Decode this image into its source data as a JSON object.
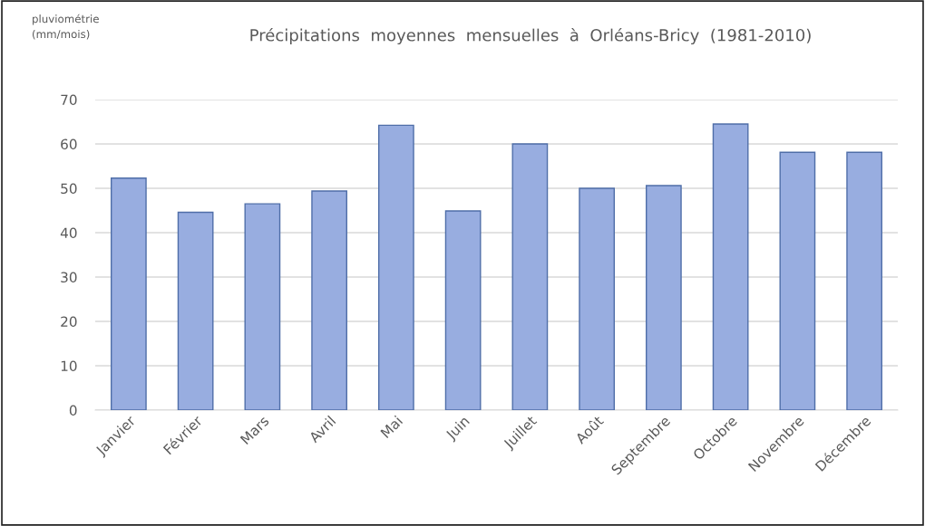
{
  "chart_data": {
    "type": "bar",
    "title": "Précipitations  moyennes  mensuelles  à  Orléans-Bricy  (1981-2010)",
    "annotations": [
      "pluviométrie\n(mm/mois)"
    ],
    "categories": [
      "Janvier",
      "Février",
      "Mars",
      "Avril",
      "Mai",
      "Juin",
      "Juillet",
      "Août",
      "Septembre",
      "Octobre",
      "Novembre",
      "Décembre"
    ],
    "values": [
      52.3,
      44.6,
      46.5,
      49.4,
      64.2,
      44.9,
      60.0,
      50.0,
      50.6,
      64.5,
      58.1,
      58.1
    ],
    "color": "#98ade0",
    "ylim": [
      0,
      70
    ],
    "yticks": [
      0,
      10,
      20,
      30,
      40,
      50,
      60,
      70
    ],
    "grid": "y",
    "legend": false
  }
}
